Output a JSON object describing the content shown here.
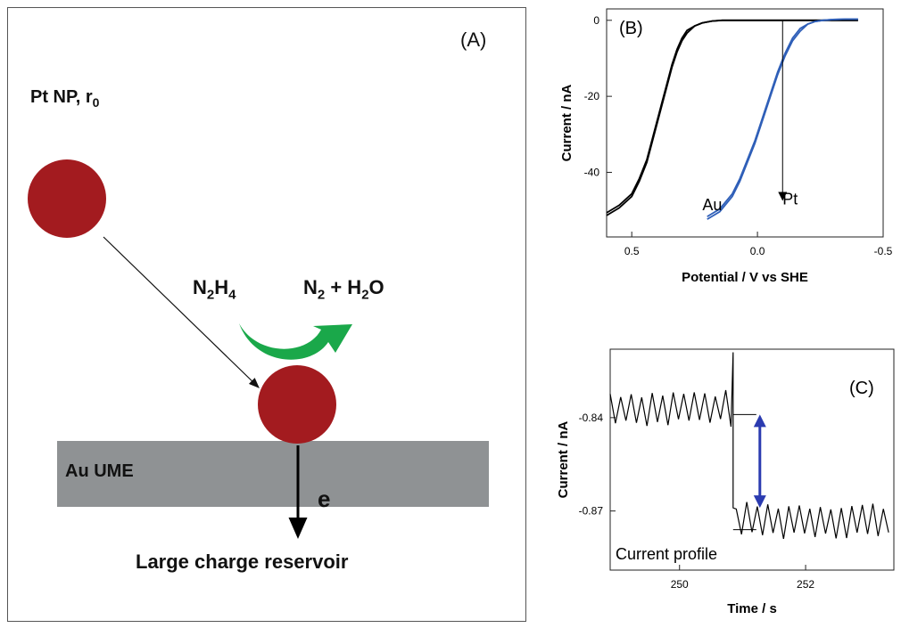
{
  "panel_a": {
    "panel_label": "(A)",
    "np_label": {
      "main": "Pt NP, r",
      "sub": "0"
    },
    "reactant": {
      "base": "N",
      "sub1": "2",
      "mid": "H",
      "sub2": "4"
    },
    "product": {
      "n": "N",
      "n_sub": "2",
      "plus": " + H",
      "h_sub": "2",
      "o": "O"
    },
    "electrode_label": "Au UME",
    "electron_label": "e",
    "reservoir_label": "Large charge reservoir",
    "colors": {
      "particle": "#a31b1f",
      "electrode": "#8f9294",
      "curved_arrow": "#1aa84a",
      "border": "#555555"
    }
  },
  "chart_data": [
    {
      "type": "line",
      "panel_label": "(B)",
      "xlabel": "Potential / V vs SHE",
      "ylabel": "Current / nA",
      "xlim": [
        0.6,
        -0.5
      ],
      "ylim": [
        -57,
        3
      ],
      "x_axis_reversed": true,
      "xticks": [
        {
          "value": 0.5,
          "label": "0.5"
        },
        {
          "value": 0.0,
          "label": "0.0"
        },
        {
          "value": -0.5,
          "label": "-0.5"
        }
      ],
      "yticks": [
        {
          "value": 0,
          "label": "0"
        },
        {
          "value": -20,
          "label": "-20"
        },
        {
          "value": -40,
          "label": "-40"
        }
      ],
      "series": [
        {
          "name": "Au",
          "color": "#000000",
          "x": [
            0.6,
            0.55,
            0.5,
            0.47,
            0.44,
            0.42,
            0.4,
            0.38,
            0.36,
            0.34,
            0.32,
            0.3,
            0.28,
            0.25,
            0.22,
            0.18,
            0.14,
            0.1,
            0.05,
            0.0,
            -0.1,
            -0.2,
            -0.3,
            -0.4
          ],
          "y": [
            -51,
            -49,
            -46,
            -42,
            -37,
            -32,
            -27,
            -22,
            -17,
            -12,
            -8,
            -5,
            -3,
            -1.5,
            -0.7,
            -0.2,
            0,
            0,
            0,
            0,
            0,
            0,
            0,
            0
          ]
        },
        {
          "name": "Pt",
          "color": "#2f5fb8",
          "x": [
            0.2,
            0.15,
            0.1,
            0.07,
            0.04,
            0.01,
            -0.02,
            -0.05,
            -0.08,
            -0.11,
            -0.14,
            -0.17,
            -0.2,
            -0.23,
            -0.26,
            -0.3,
            -0.35,
            -0.4
          ],
          "y": [
            -52,
            -50,
            -46,
            -42,
            -37,
            -32,
            -26,
            -20,
            -14,
            -9,
            -5,
            -2.5,
            -1,
            -0.3,
            0,
            0.2,
            0.3,
            0.3
          ]
        }
      ],
      "annotations": [
        "Au",
        "Pt"
      ],
      "grid": false
    },
    {
      "type": "line",
      "panel_label": "(C)",
      "xlabel": "Time / s",
      "ylabel": "Current / nA",
      "xlim": [
        248.9,
        253.4
      ],
      "ylim": [
        -0.889,
        -0.818
      ],
      "xticks": [
        {
          "value": 250,
          "label": "250"
        },
        {
          "value": 252,
          "label": "252"
        }
      ],
      "yticks": [
        {
          "value": -0.84,
          "label": "-0.84"
        },
        {
          "value": -0.87,
          "label": "-0.87"
        }
      ],
      "series": [
        {
          "name": "",
          "color": "#000000",
          "step_time": 250.85,
          "before_mean": -0.837,
          "after_mean": -0.873,
          "noise_amplitude": 0.006,
          "samples_per_second": 12
        }
      ],
      "annotations": [
        "Current profile"
      ],
      "step_marker_color": "#2b3bb0",
      "grid": false
    }
  ]
}
